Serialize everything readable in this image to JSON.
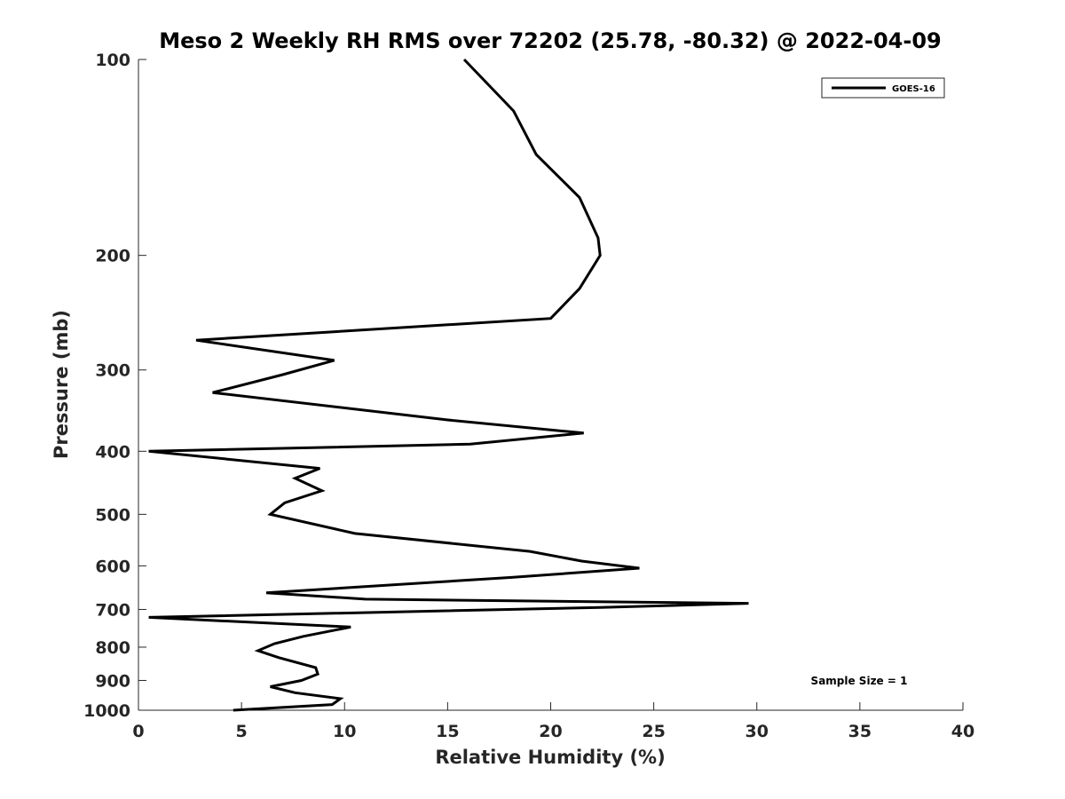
{
  "chart_data": {
    "type": "line",
    "title": "Meso 2 Weekly RH RMS over 72202 (25.78, -80.32) @ 2022-04-09",
    "xlabel": "Relative Humidity (%)",
    "ylabel": "Pressure (mb)",
    "xlim": [
      0,
      40
    ],
    "ylim": [
      100,
      1000
    ],
    "yscale": "log",
    "yreversed": true,
    "xticks": [
      0,
      5,
      10,
      15,
      20,
      25,
      30,
      35,
      40
    ],
    "yticks": [
      100,
      200,
      300,
      400,
      500,
      600,
      700,
      800,
      900,
      1000
    ],
    "grid": false,
    "legend_position": "top-right",
    "annotation": "Sample Size = 1",
    "series": [
      {
        "name": "GOES-16",
        "color": "#000000",
        "x": [
          15.8,
          18.2,
          19.3,
          21.4,
          22.3,
          22.4,
          21.4,
          20.0,
          2.8,
          9.5,
          7.0,
          3.6,
          15.0,
          21.6,
          16.1,
          0.5,
          8.8,
          7.6,
          8.9,
          7.1,
          6.4,
          10.5,
          19.0,
          21.5,
          24.3,
          18.1,
          6.2,
          11.0,
          29.6,
          22.4,
          0.5,
          10.3,
          8.0,
          6.6,
          5.8,
          6.8,
          8.6,
          8.7,
          7.9,
          6.4,
          7.6,
          9.8,
          9.4,
          4.6
        ],
        "y": [
          100,
          120,
          140,
          163,
          188,
          200,
          225,
          250,
          270,
          290,
          305,
          325,
          358,
          375,
          390,
          400,
          425,
          440,
          460,
          480,
          500,
          535,
          570,
          590,
          605,
          625,
          660,
          675,
          685,
          695,
          720,
          745,
          770,
          790,
          810,
          830,
          860,
          880,
          900,
          920,
          940,
          960,
          980,
          1000
        ]
      }
    ]
  }
}
